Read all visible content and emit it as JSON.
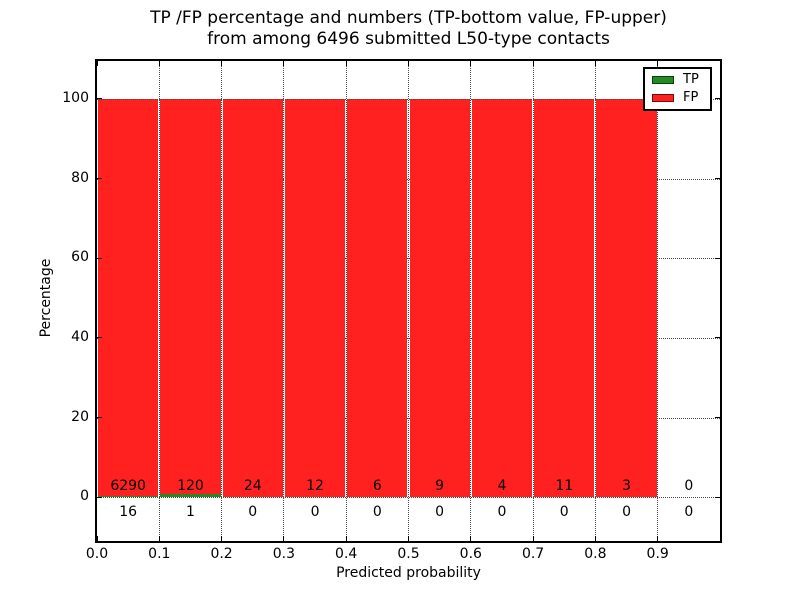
{
  "title": {
    "line1": "TP /FP percentage and numbers (TP-bottom value, FP-upper)",
    "line2": "from among 6496 submitted L50-type contacts"
  },
  "chart_data": {
    "type": "bar",
    "stacked": true,
    "title": "TP /FP percentage and numbers (TP-bottom value, FP-upper) from among 6496 submitted L50-type contacts",
    "xlabel": "Predicted probability",
    "ylabel": "Percentage",
    "bin_edges": [
      0.0,
      0.1,
      0.2,
      0.3,
      0.4,
      0.5,
      0.6,
      0.7,
      0.8,
      0.9,
      1.0
    ],
    "categories": [
      "0.0-0.1",
      "0.1-0.2",
      "0.2-0.3",
      "0.3-0.4",
      "0.4-0.5",
      "0.5-0.6",
      "0.6-0.7",
      "0.7-0.8",
      "0.8-0.9",
      "0.9-1.0"
    ],
    "series": [
      {
        "name": "TP",
        "color": "#228b22",
        "counts": [
          16,
          1,
          0,
          0,
          0,
          0,
          0,
          0,
          0,
          0
        ]
      },
      {
        "name": "FP",
        "color": "#ff2020",
        "counts": [
          6290,
          120,
          24,
          12,
          6,
          9,
          4,
          11,
          3,
          0
        ]
      }
    ],
    "value_encoding": "each bin stacked to 100%: TP% = TP/(TP+FP)*100 bottom, FP% above",
    "xticks": [
      "0.0",
      "0.1",
      "0.2",
      "0.3",
      "0.4",
      "0.5",
      "0.6",
      "0.7",
      "0.8",
      "0.9"
    ],
    "yticks": [
      0,
      20,
      40,
      60,
      80,
      100
    ],
    "xlim": [
      0.0,
      1.0
    ],
    "ylim": [
      -11,
      109.5
    ],
    "grid": {
      "style": "dotted",
      "color": "#4a4a4a"
    },
    "legend": {
      "position": "upper right",
      "entries": [
        {
          "label": "TP",
          "color": "#228b22"
        },
        {
          "label": "FP",
          "color": "#ff2020"
        }
      ]
    }
  }
}
